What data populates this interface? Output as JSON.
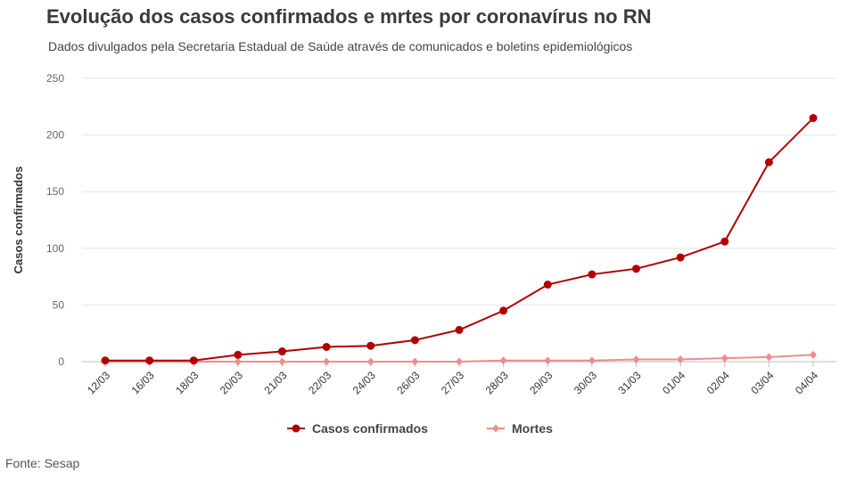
{
  "title": "Evolução dos casos confirmados e mrtes por coronavírus no RN",
  "subtitle": "Dados divulgados pela Secretaria Estadual de Saúde através de comunicados e boletins epidemiológicos",
  "source": "Fonte: Sesap",
  "chart_data": {
    "type": "line",
    "title": "Evolução dos casos confirmados e mrtes por coronavírus no RN",
    "subtitle": "Dados divulgados pela Secretaria Estadual de Saúde através de comunicados e boletins epidemiológicos",
    "xlabel": "",
    "ylabel": "Casos confirmados",
    "ylim": [
      0,
      250
    ],
    "yticks": [
      0,
      50,
      100,
      150,
      200,
      250
    ],
    "grid": true,
    "legend_position": "bottom",
    "categories": [
      "12/03",
      "16/03",
      "18/03",
      "20/03",
      "21/03",
      "22/03",
      "24/03",
      "26/03",
      "27/03",
      "28/03",
      "29/03",
      "30/03",
      "31/03",
      "01/04",
      "02/04",
      "03/04",
      "04/04"
    ],
    "series": [
      {
        "name": "Casos confirmados",
        "color": "#b00000",
        "marker": "circle",
        "values": [
          1,
          1,
          1,
          6,
          9,
          13,
          14,
          19,
          28,
          45,
          68,
          77,
          82,
          92,
          106,
          176,
          215
        ]
      },
      {
        "name": "Mortes",
        "color": "#f08c8c",
        "marker": "diamond",
        "values": [
          0,
          0,
          0,
          0,
          0,
          0,
          0,
          0,
          0,
          1,
          1,
          1,
          2,
          2,
          3,
          4,
          6
        ]
      }
    ]
  }
}
